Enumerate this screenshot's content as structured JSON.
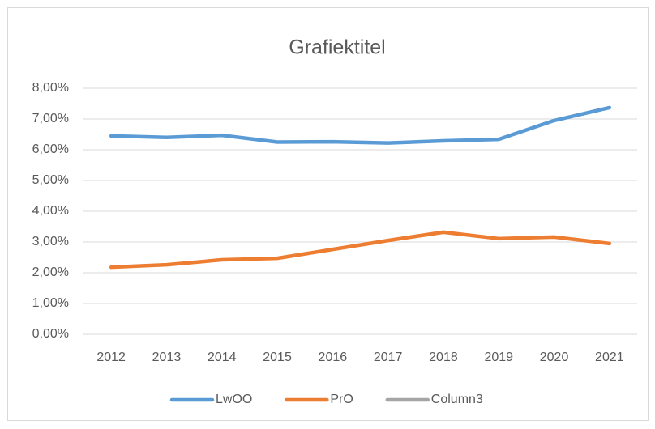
{
  "chart_data": {
    "type": "line",
    "title": "Grafiektitel",
    "categories": [
      "2012",
      "2013",
      "2014",
      "2015",
      "2016",
      "2017",
      "2018",
      "2019",
      "2020",
      "2021"
    ],
    "series": [
      {
        "name": "LwOO",
        "color": "#5b9bd5",
        "values": [
          6.45,
          6.4,
          6.47,
          6.25,
          6.26,
          6.22,
          6.29,
          6.34,
          6.95,
          7.37
        ]
      },
      {
        "name": "PrO",
        "color": "#ed7d31",
        "values": [
          2.18,
          2.26,
          2.42,
          2.47,
          2.76,
          3.05,
          3.32,
          3.11,
          3.16,
          2.95
        ]
      },
      {
        "name": "Column3",
        "color": "#a5a5a5",
        "values": [
          null,
          null,
          null,
          null,
          null,
          null,
          null,
          null,
          null,
          null
        ]
      }
    ],
    "ylim": [
      0,
      8
    ],
    "yticks": [
      {
        "value": 0,
        "label": "0,00%"
      },
      {
        "value": 1,
        "label": "1,00%"
      },
      {
        "value": 2,
        "label": "2,00%"
      },
      {
        "value": 3,
        "label": "3,00%"
      },
      {
        "value": 4,
        "label": "4,00%"
      },
      {
        "value": 5,
        "label": "5,00%"
      },
      {
        "value": 6,
        "label": "6,00%"
      },
      {
        "value": 7,
        "label": "7,00%"
      },
      {
        "value": 8,
        "label": "8,00%"
      }
    ],
    "grid": true,
    "legend": "bottom"
  }
}
